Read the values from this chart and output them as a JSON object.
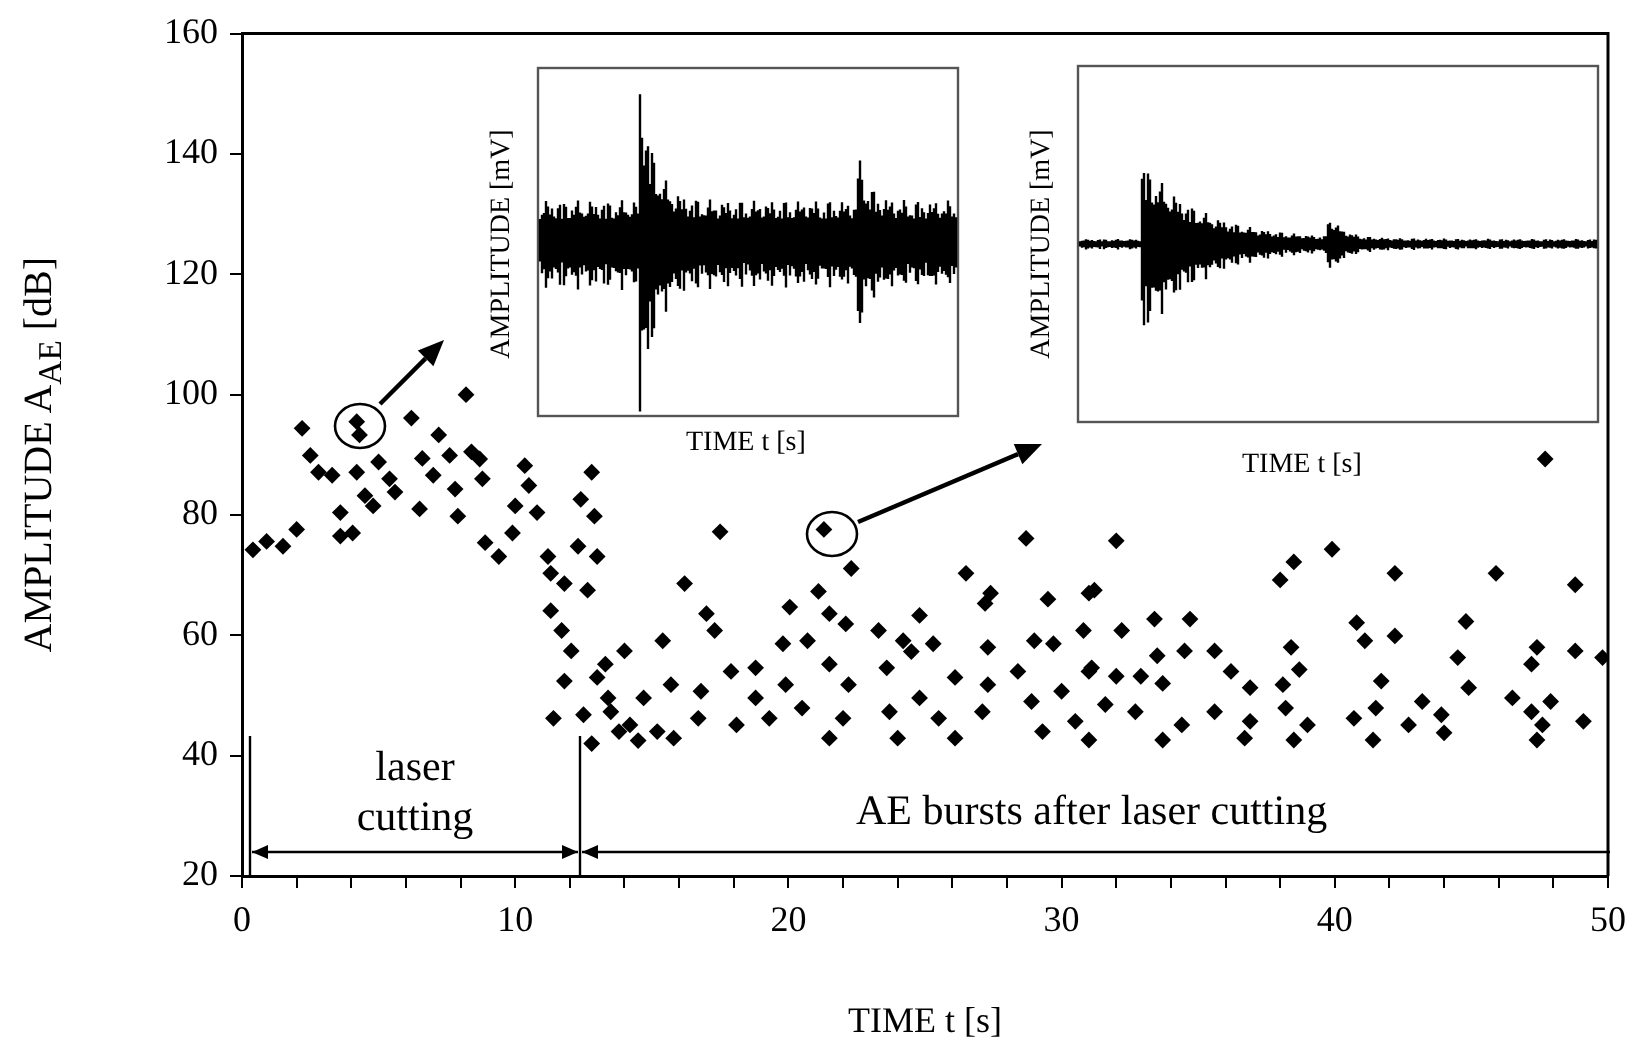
{
  "chart_data": {
    "type": "scatter",
    "xlabel": "TIME t [s]",
    "ylabel": "AMPLITUDE A$_{AE}$ [dB]",
    "annotations": [
      "laser cutting",
      "AE bursts after laser cutting",
      "AMPLITUDE [mV]",
      "TIME t [s]",
      "AMPLITUDE [mV]",
      "TIME t [s]"
    ],
    "xlim": [
      0,
      50
    ],
    "ylim": [
      20,
      160
    ],
    "xticks": [
      0,
      {
        "value": 2,
        "label": null
      },
      {
        "value": 4,
        "label": null
      },
      {
        "value": 6,
        "label": null
      },
      {
        "value": 8,
        "label": null
      },
      10,
      {
        "value": 12,
        "label": null
      },
      {
        "value": 14,
        "label": null
      },
      {
        "value": 16,
        "label": null
      },
      {
        "value": 18,
        "label": null
      },
      20,
      {
        "value": 22,
        "label": null
      },
      {
        "value": 24,
        "label": null
      },
      {
        "value": 26,
        "label": null
      },
      {
        "value": 28,
        "label": null
      },
      30,
      {
        "value": 32,
        "label": null
      },
      {
        "value": 34,
        "label": null
      },
      {
        "value": 36,
        "label": null
      },
      {
        "value": 38,
        "label": null
      },
      40,
      {
        "value": 42,
        "label": null
      },
      {
        "value": 44,
        "label": null
      },
      {
        "value": 46,
        "label": null
      },
      {
        "value": 48,
        "label": null
      },
      50
    ],
    "yticks": [
      20,
      40,
      60,
      80,
      100,
      120,
      140,
      160
    ],
    "grid": false,
    "legend": false,
    "marker": "diamond",
    "series": [
      {
        "color": "#000000",
        "x": [
          0.4,
          0.9,
          1.5,
          2.0,
          2.2,
          2.5,
          2.8,
          3.3,
          3.6,
          3.6,
          4.05,
          4.2,
          4.3,
          4.2,
          4.5,
          4.8,
          5.0,
          5.4,
          5.6,
          6.2,
          6.5,
          6.6,
          7.0,
          7.2,
          7.6,
          7.8,
          7.9,
          8.2,
          8.4,
          8.8,
          8.7,
          8.9,
          9.4,
          9.9,
          10.0,
          10.35,
          10.5,
          10.8,
          11.2,
          11.3,
          11.8,
          12.3,
          12.4,
          12.8,
          12.9,
          13.0,
          12.65,
          11.3,
          11.7,
          12.05,
          11.8,
          11.4,
          12.5,
          13.3,
          13.4,
          12.8,
          13.8,
          14.5,
          17.5,
          21.3,
          22.3,
          16.2,
          21.1,
          20.05,
          21.5,
          17.0,
          26.5,
          27.4,
          27.2,
          28.7,
          29.5,
          31.0,
          24.8,
          17.3,
          15.4,
          24.2,
          25.3,
          23.3,
          19.8,
          20.7,
          22.1,
          27.3,
          29.0,
          29.7,
          14.0,
          13.0,
          13.5,
          14.2,
          14.7,
          15.2,
          15.8,
          15.7,
          16.7,
          16.8,
          17.9,
          18.1,
          18.8,
          18.8,
          19.3,
          19.9,
          20.5,
          21.5,
          21.5,
          22.0,
          22.2,
          23.6,
          23.7,
          24.0,
          24.5,
          24.8,
          25.5,
          26.1,
          26.1,
          27.1,
          27.3,
          28.4,
          28.9,
          29.3,
          30.0,
          30.5,
          31.0,
          47.7,
          32.0,
          38.5,
          38.0,
          39.9,
          42.2,
          45.9,
          48.8,
          31.2,
          33.4,
          34.7,
          32.2,
          30.8,
          40.8,
          42.2,
          44.8,
          41.1,
          47.4,
          48.8,
          49.8,
          35.6,
          38.4,
          33.5,
          34.5,
          31.1,
          32.0,
          32.9,
          33.7,
          36.2,
          36.9,
          38.7,
          38.1,
          41.7,
          44.5,
          44.9,
          47.2,
          46.5,
          47.9,
          31.6,
          32.7,
          34.4,
          35.6,
          36.9,
          38.2,
          39.0,
          40.7,
          41.5,
          43.2,
          43.9,
          42.7,
          47.2,
          47.6,
          49.1,
          31.0,
          33.7,
          36.7,
          38.5,
          41.4,
          44.0,
          47.4
        ],
        "values": [
          74.2,
          75.6,
          74.8,
          77.6,
          94.4,
          89.9,
          87.1,
          86.6,
          80.4,
          76.5,
          77,
          95.5,
          93.3,
          87.1,
          83.2,
          81.5,
          88.8,
          86,
          83.8,
          96.1,
          81,
          89.4,
          86.6,
          93.3,
          89.9,
          84.3,
          79.8,
          100,
          90.5,
          86,
          89.3,
          75.4,
          73.1,
          77,
          81.5,
          88.2,
          84.9,
          80.4,
          73.1,
          70.3,
          68.6,
          74.8,
          82.6,
          87.1,
          79.8,
          73.1,
          67.5,
          64.1,
          60.8,
          57.4,
          52.4,
          46.2,
          46.8,
          55.2,
          49.6,
          42,
          44,
          42.5,
          77.2,
          77.6,
          71.1,
          68.6,
          67.3,
          64.7,
          63.6,
          63.6,
          70.3,
          67,
          65.3,
          76.1,
          66,
          67,
          63.3,
          60.8,
          59.1,
          59.1,
          58.6,
          60.8,
          58.6,
          59.1,
          61.9,
          58,
          59.1,
          58.6,
          57.4,
          53,
          47.3,
          45.1,
          49.6,
          44,
          42.9,
          51.8,
          46.2,
          50.7,
          54,
          45.1,
          54.6,
          49.6,
          46.2,
          51.8,
          47.9,
          55.2,
          42.9,
          46.2,
          51.8,
          54.6,
          47.3,
          42.9,
          57.3,
          49.6,
          46.2,
          53,
          42.9,
          47.3,
          51.8,
          54,
          49,
          44,
          50.7,
          45.7,
          54,
          89.3,
          75.7,
          72.2,
          69.2,
          74.3,
          70.3,
          70.3,
          68.4,
          67.5,
          62.7,
          62.7,
          60.8,
          60.8,
          62.1,
          59.9,
          62.3,
          59.1,
          58,
          57.4,
          56.3,
          57.4,
          58,
          56.6,
          57.4,
          54.6,
          53.2,
          53.2,
          52,
          54,
          51.3,
          54.3,
          51.8,
          52.4,
          56.3,
          51.3,
          55.2,
          49.6,
          49,
          48.5,
          47.3,
          45.1,
          47.3,
          45.7,
          47.9,
          45.1,
          46.2,
          47.9,
          49,
          46.8,
          45.1,
          47.3,
          45.1,
          45.7,
          42.6,
          42.6,
          42.9,
          42.6,
          42.6,
          43.8,
          42.6
        ]
      }
    ]
  }
}
